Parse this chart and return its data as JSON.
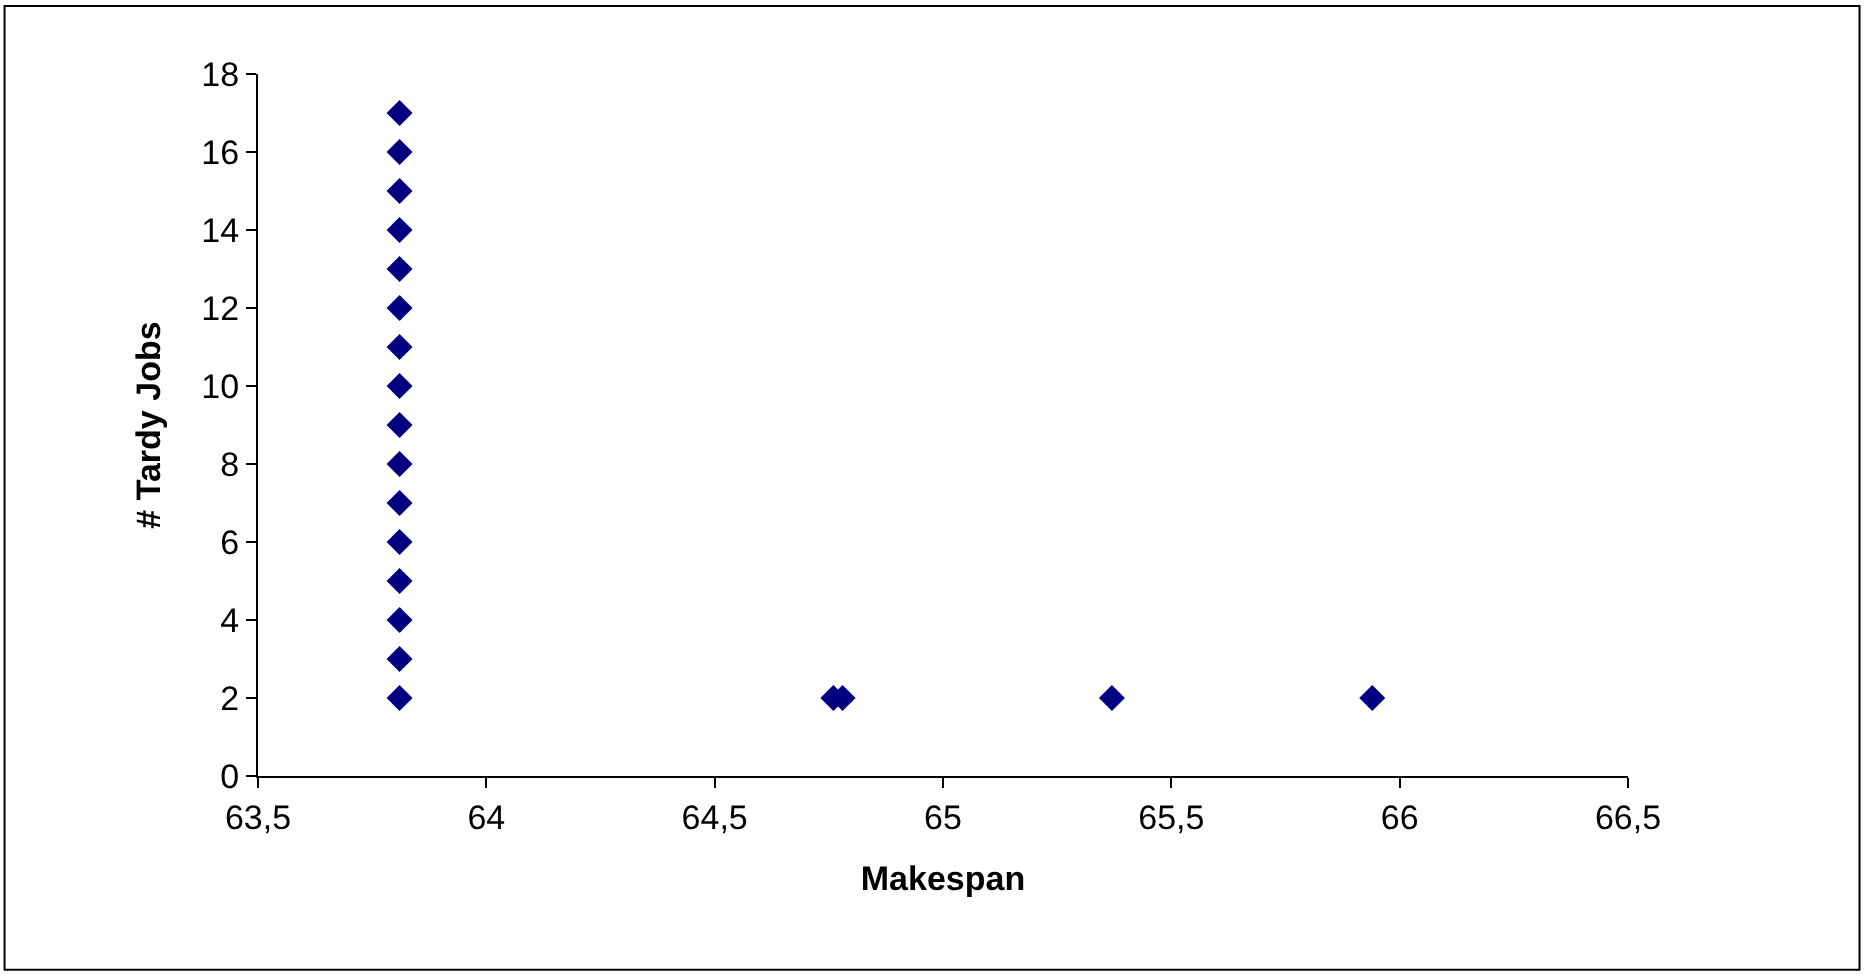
{
  "chart_data": {
    "type": "scatter",
    "xlabel": "Makespan",
    "ylabel": "# Tardy Jobs",
    "x": [
      63.81,
      63.81,
      63.81,
      63.81,
      63.81,
      63.81,
      63.81,
      63.81,
      63.81,
      63.81,
      63.81,
      63.81,
      63.81,
      63.81,
      63.81,
      63.81,
      64.76,
      64.78,
      65.37,
      65.94
    ],
    "series": [
      {
        "color": "#000080",
        "values": [
          2,
          3,
          4,
          5,
          6,
          7,
          8,
          9,
          10,
          11,
          12,
          13,
          14,
          15,
          16,
          17,
          2,
          2,
          2,
          2
        ]
      }
    ],
    "xlim": [
      63.5,
      66.5
    ],
    "xticks": [
      {
        "value": 63.5,
        "label": "63,5"
      },
      64,
      {
        "value": 64.5,
        "label": "64,5"
      },
      65,
      {
        "value": 65.5,
        "label": "65,5"
      },
      66,
      {
        "value": 66.5,
        "label": "66,5"
      }
    ],
    "ylim": [
      0,
      18
    ],
    "yticks": [
      0,
      2,
      4,
      6,
      8,
      10,
      12,
      14,
      16,
      18
    ],
    "marker": "diamond"
  }
}
